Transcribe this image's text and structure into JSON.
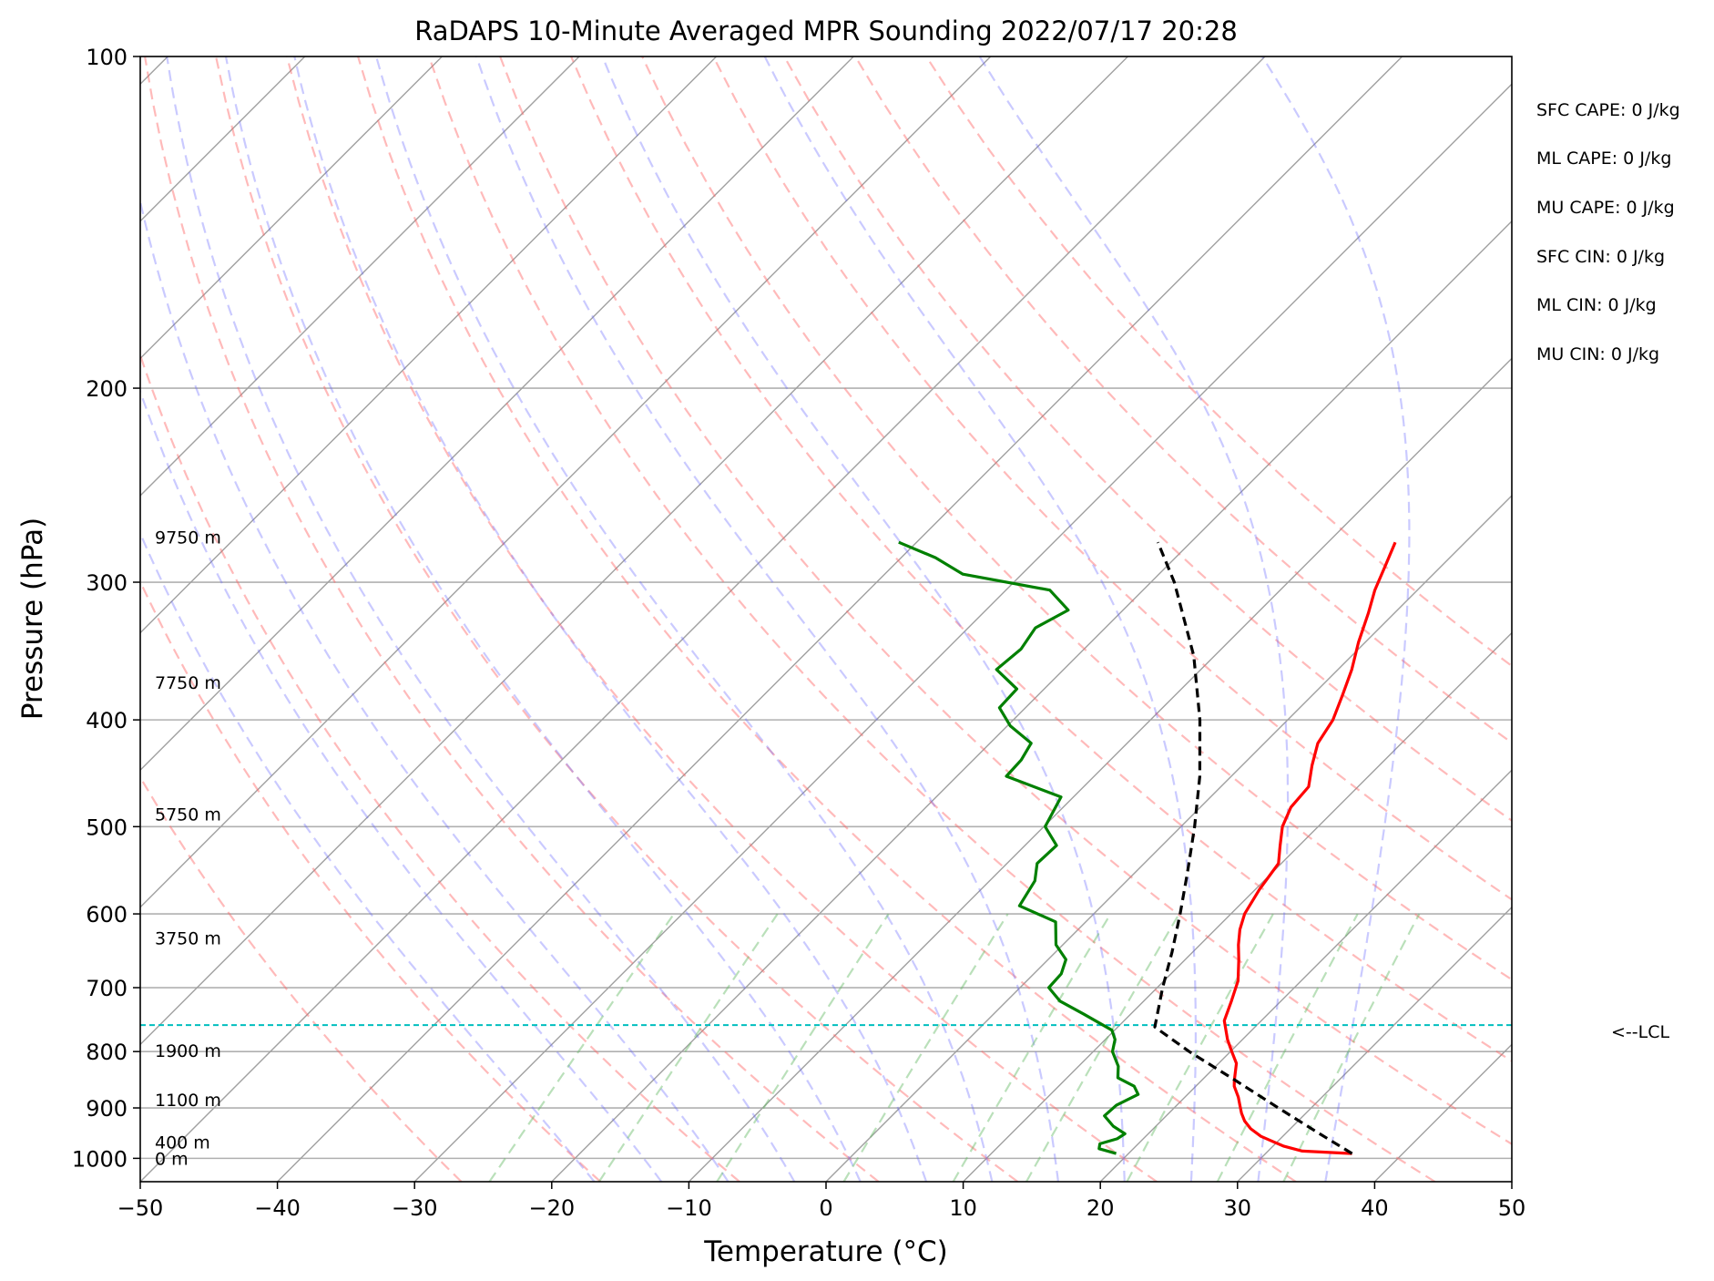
{
  "chart_data": {
    "type": "line",
    "title": "RaDAPS 10-Minute Averaged MPR Sounding 2022/07/17 20:28",
    "xlabel": "Temperature (°C)",
    "ylabel": "Pressure (hPa)",
    "xlim": [
      -50,
      50
    ],
    "ylim": [
      1050,
      100
    ],
    "y_scale": "log",
    "x_ticks": [
      "−50",
      "−40",
      "−30",
      "−20",
      "−10",
      "0",
      "10",
      "20",
      "30",
      "40",
      "50"
    ],
    "x_tick_values": [
      -50,
      -40,
      -30,
      -20,
      -10,
      0,
      10,
      20,
      30,
      40,
      50
    ],
    "y_ticks": [
      "100",
      "200",
      "300",
      "400",
      "500",
      "600",
      "700",
      "800",
      "900",
      "1000"
    ],
    "y_tick_values": [
      100,
      200,
      300,
      400,
      500,
      600,
      700,
      800,
      900,
      1000
    ],
    "grid": true,
    "series": [
      {
        "role": "temperature",
        "color": "#ff0000",
        "points": [
          {
            "p": 990,
            "t": 36.3
          },
          {
            "p": 985,
            "t": 32.5
          },
          {
            "p": 975,
            "t": 30.8
          },
          {
            "p": 965,
            "t": 29.6
          },
          {
            "p": 955,
            "t": 28.4
          },
          {
            "p": 940,
            "t": 27.1
          },
          {
            "p": 925,
            "t": 26.1
          },
          {
            "p": 910,
            "t": 25.3
          },
          {
            "p": 895,
            "t": 24.6
          },
          {
            "p": 880,
            "t": 23.9
          },
          {
            "p": 860,
            "t": 22.8
          },
          {
            "p": 850,
            "t": 22.4
          },
          {
            "p": 820,
            "t": 21.3
          },
          {
            "p": 800,
            "t": 20.1
          },
          {
            "p": 780,
            "t": 18.9
          },
          {
            "p": 750,
            "t": 17.3
          },
          {
            "p": 720,
            "t": 16.4
          },
          {
            "p": 690,
            "t": 15.4
          },
          {
            "p": 660,
            "t": 13.9
          },
          {
            "p": 640,
            "t": 12.8
          },
          {
            "p": 620,
            "t": 11.8
          },
          {
            "p": 600,
            "t": 11.0
          },
          {
            "p": 570,
            "t": 10.3
          },
          {
            "p": 540,
            "t": 9.8
          },
          {
            "p": 520,
            "t": 8.6
          },
          {
            "p": 500,
            "t": 7.4
          },
          {
            "p": 480,
            "t": 6.6
          },
          {
            "p": 460,
            "t": 6.4
          },
          {
            "p": 440,
            "t": 5.1
          },
          {
            "p": 420,
            "t": 3.9
          },
          {
            "p": 400,
            "t": 3.3
          },
          {
            "p": 380,
            "t": 2.2
          },
          {
            "p": 360,
            "t": 1.0
          },
          {
            "p": 340,
            "t": -0.5
          },
          {
            "p": 320,
            "t": -1.9
          },
          {
            "p": 305,
            "t": -3.1
          },
          {
            "p": 290,
            "t": -4.1
          },
          {
            "p": 276,
            "t": -5.1
          }
        ]
      },
      {
        "role": "dewpoint",
        "color": "#008000",
        "points": [
          {
            "p": 990,
            "t": 19.1
          },
          {
            "p": 980,
            "t": 17.5
          },
          {
            "p": 970,
            "t": 17.2
          },
          {
            "p": 960,
            "t": 18.1
          },
          {
            "p": 950,
            "t": 18.3
          },
          {
            "p": 935,
            "t": 16.9
          },
          {
            "p": 915,
            "t": 15.5
          },
          {
            "p": 895,
            "t": 15.6
          },
          {
            "p": 875,
            "t": 16.4
          },
          {
            "p": 860,
            "t": 15.5
          },
          {
            "p": 845,
            "t": 13.7
          },
          {
            "p": 825,
            "t": 12.9
          },
          {
            "p": 800,
            "t": 11.4
          },
          {
            "p": 780,
            "t": 10.7
          },
          {
            "p": 765,
            "t": 9.8
          },
          {
            "p": 740,
            "t": 6.6
          },
          {
            "p": 720,
            "t": 3.9
          },
          {
            "p": 700,
            "t": 2.1
          },
          {
            "p": 680,
            "t": 2.0
          },
          {
            "p": 660,
            "t": 1.3
          },
          {
            "p": 640,
            "t": -0.5
          },
          {
            "p": 610,
            "t": -2.2
          },
          {
            "p": 590,
            "t": -6.0
          },
          {
            "p": 560,
            "t": -6.7
          },
          {
            "p": 540,
            "t": -7.8
          },
          {
            "p": 520,
            "t": -7.7
          },
          {
            "p": 500,
            "t": -9.9
          },
          {
            "p": 470,
            "t": -10.9
          },
          {
            "p": 450,
            "t": -16.4
          },
          {
            "p": 435,
            "t": -16.5
          },
          {
            "p": 420,
            "t": -17.0
          },
          {
            "p": 405,
            "t": -19.8
          },
          {
            "p": 390,
            "t": -21.9
          },
          {
            "p": 375,
            "t": -22.0
          },
          {
            "p": 360,
            "t": -24.9
          },
          {
            "p": 345,
            "t": -24.6
          },
          {
            "p": 330,
            "t": -25.1
          },
          {
            "p": 318,
            "t": -24.0
          },
          {
            "p": 305,
            "t": -26.8
          },
          {
            "p": 295,
            "t": -34.3
          },
          {
            "p": 285,
            "t": -37.5
          },
          {
            "p": 276,
            "t": -41.3
          }
        ]
      },
      {
        "role": "parcel",
        "color": "#000000",
        "style": "dashed",
        "points": [
          {
            "p": 990,
            "t": 36.3
          },
          {
            "p": 950,
            "t": 32.5
          },
          {
            "p": 900,
            "t": 27.6
          },
          {
            "p": 850,
            "t": 22.5
          },
          {
            "p": 800,
            "t": 17.0
          },
          {
            "p": 760,
            "t": 12.7
          },
          {
            "p": 700,
            "t": 10.4
          },
          {
            "p": 650,
            "t": 8.5
          },
          {
            "p": 600,
            "t": 6.3
          },
          {
            "p": 550,
            "t": 3.8
          },
          {
            "p": 500,
            "t": 1.0
          },
          {
            "p": 450,
            "t": -2.3
          },
          {
            "p": 400,
            "t": -6.4
          },
          {
            "p": 350,
            "t": -11.5
          },
          {
            "p": 300,
            "t": -18.3
          },
          {
            "p": 276,
            "t": -22.4
          }
        ]
      }
    ],
    "skew_lines": {
      "color": "#a0a0a0",
      "t0": [
        -150,
        -140,
        -130,
        -120,
        -110,
        -100,
        -90,
        -80,
        -70,
        -60,
        -50,
        -40,
        -30,
        -20,
        -10,
        0,
        10,
        20,
        30,
        40,
        50
      ]
    },
    "dry_adiabats": {
      "color": "#ff6666",
      "theta_c": [
        -30,
        -20,
        -10,
        0,
        10,
        20,
        30,
        40,
        50,
        60,
        70,
        80,
        90,
        100,
        110
      ]
    },
    "moist_adiabats": {
      "color": "#6666ff",
      "t0_c": [
        -20,
        -15,
        -10,
        -5,
        0,
        5,
        10,
        15,
        20,
        25,
        30,
        35
      ]
    },
    "mixing_ratio": {
      "color": "#66bb66",
      "w_gkg": [
        0.5,
        1,
        2,
        4,
        7,
        10,
        16,
        24,
        32
      ]
    },
    "lcl": {
      "p": 757,
      "label": "<--LCL",
      "color": "#00bfbf"
    },
    "height_labels": [
      {
        "label": "9750 m",
        "p": 273
      },
      {
        "label": "7750 m",
        "p": 370
      },
      {
        "label": "5750 m",
        "p": 487
      },
      {
        "label": "3750 m",
        "p": 631
      },
      {
        "label": "1900 m",
        "p": 798
      },
      {
        "label": "1100 m",
        "p": 885
      },
      {
        "label": "400 m",
        "p": 967
      },
      {
        "label": "0 m",
        "p": 1000
      }
    ]
  },
  "stats": [
    "SFC CAPE: 0 J/kg",
    "ML CAPE: 0 J/kg",
    "MU CAPE: 0 J/kg",
    "SFC CIN: 0 J/kg",
    "ML CIN: 0 J/kg",
    "MU CIN: 0 J/kg"
  ]
}
